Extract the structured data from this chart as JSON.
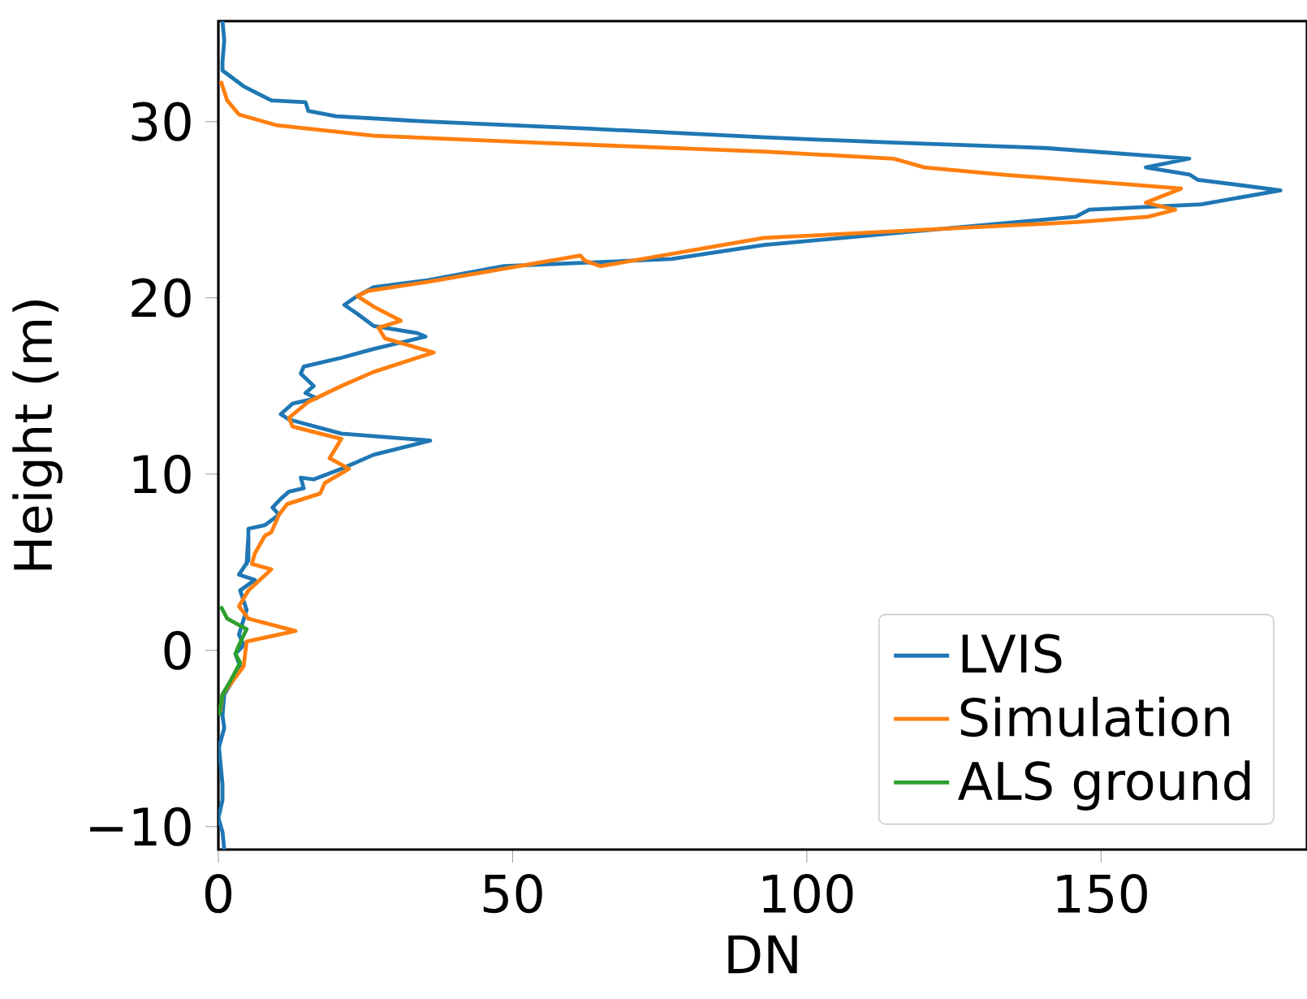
{
  "chart_data": {
    "type": "line",
    "xlabel": "DN",
    "ylabel": "Height (m)",
    "xlim": [
      0,
      185
    ],
    "ylim": [
      -11.3,
      35.7
    ],
    "xticks": [
      0,
      50,
      100,
      150
    ],
    "yticks": [
      {
        "value": -10,
        "label": "−10"
      },
      0,
      10,
      20,
      30
    ],
    "legend": "bottom right",
    "grid": false,
    "marker": "none",
    "line_style": "solid",
    "series": [
      {
        "name": "LVIS",
        "color": "#1f77b4",
        "x": [
          0.7,
          1,
          0.7,
          0.7,
          4.3,
          9,
          14.8,
          15.3,
          20,
          35.5,
          63,
          93,
          115,
          140.5,
          165,
          157.6,
          165,
          166.4,
          180.5,
          167,
          148,
          145.7,
          92.7,
          77,
          48.5,
          35.5,
          26.4,
          23.6,
          21.4,
          23.6,
          26.4,
          33.8,
          35.2,
          26.4,
          20.9,
          14.5,
          14,
          16.2,
          14.8,
          16.7,
          12.6,
          10.6,
          12,
          20.9,
          36,
          26.4,
          20.9,
          16.2,
          14,
          14.5,
          12,
          10.6,
          9.2,
          10.3,
          7.9,
          5.1,
          5.1,
          4.8,
          5.1,
          5.1,
          3.5,
          6.2,
          3.7,
          4.8,
          3.5,
          4.3,
          2.9,
          3.7,
          2.3,
          1,
          0.7,
          1,
          0.1,
          0.7,
          0.7,
          0,
          0.7,
          1
        ],
        "values": [
          35.7,
          34.6,
          33.4,
          32.9,
          32.0,
          31.2,
          31.1,
          30.6,
          30.3,
          30.0,
          29.6,
          29.1,
          28.8,
          28.5,
          27.9,
          27.4,
          27.0,
          26.7,
          26.1,
          25.3,
          25.0,
          24.6,
          23.0,
          22.2,
          21.8,
          21.0,
          20.6,
          20.1,
          19.6,
          19.1,
          18.4,
          18.0,
          17.8,
          17.1,
          16.6,
          16.1,
          15.7,
          15.0,
          14.6,
          14.3,
          14.0,
          13.4,
          13.1,
          12.3,
          11.9,
          11.1,
          10.3,
          9.7,
          9.8,
          9.2,
          9.0,
          8.6,
          8.1,
          7.7,
          7.1,
          6.9,
          5.8,
          4.9,
          6.5,
          5.1,
          4.3,
          4.0,
          3.4,
          2.3,
          0.9,
          0.3,
          -0.2,
          -0.9,
          -1.8,
          -2.5,
          -3.7,
          -4.4,
          -5.5,
          -7.6,
          -8.5,
          -9.5,
          -10.3,
          -11.3
        ]
      },
      {
        "name": "Simulation",
        "color": "#ff7f0e",
        "x": [
          0.4,
          1.5,
          3.5,
          9.8,
          26.4,
          54,
          92.7,
          114.7,
          120,
          133,
          163.6,
          157.6,
          162.6,
          158,
          146,
          92.7,
          65,
          62.3,
          61.5,
          35.5,
          25.5,
          23.6,
          26.4,
          31,
          27.2,
          28.3,
          36.6,
          33.8,
          26.4,
          20.9,
          15.3,
          12,
          12.6,
          17.3,
          20.9,
          18.9,
          22.2,
          18.1,
          17.3,
          11.7,
          10.3,
          9,
          7.9,
          6.2,
          5.7,
          9,
          5.1,
          3.5,
          5.1,
          13.1,
          4.8,
          4.3,
          2.3,
          0.7,
          0.3
        ],
        "values": [
          32.3,
          31.2,
          30.4,
          29.8,
          29.2,
          28.8,
          28.3,
          27.9,
          27.4,
          27.0,
          26.2,
          25.4,
          25.0,
          24.6,
          24.3,
          23.4,
          21.8,
          22.1,
          22.4,
          20.9,
          20.4,
          20.1,
          19.5,
          18.7,
          18.3,
          17.7,
          16.9,
          16.6,
          15.8,
          15.0,
          14.1,
          13.2,
          12.7,
          12.3,
          12.0,
          10.9,
          10.3,
          9.5,
          8.9,
          8.3,
          7.7,
          6.7,
          6.5,
          5.5,
          4.9,
          4.6,
          3.4,
          2.5,
          1.8,
          1.1,
          0.5,
          -0.9,
          -1.8,
          -2.5,
          -3.5
        ]
      },
      {
        "name": "ALS ground",
        "color": "#2ca02c",
        "x": [
          0.4,
          1.5,
          4.8,
          3.5,
          2.9,
          3.7,
          2.1,
          0.7,
          0.1
        ],
        "values": [
          2.5,
          1.8,
          1.2,
          0.3,
          -0.2,
          -0.7,
          -1.7,
          -2.5,
          -3.7
        ]
      }
    ]
  }
}
